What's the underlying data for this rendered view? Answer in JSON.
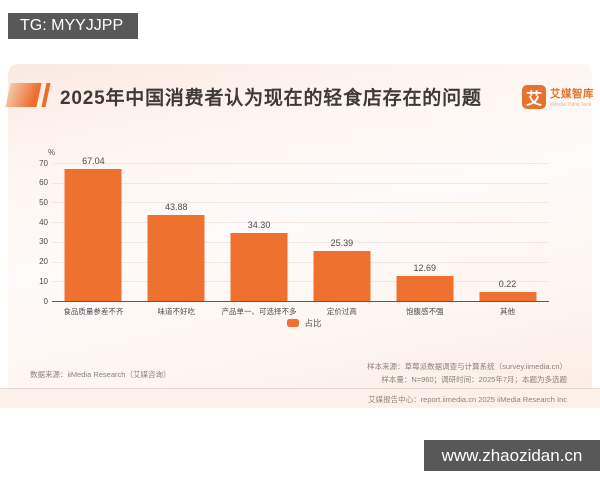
{
  "watermarks": {
    "top": "TG: MYYJJPP",
    "bottom": "www.zhaozidan.cn"
  },
  "header": {
    "title": "2025年中国消费者认为现在的轻食店存在的问题",
    "logo": {
      "glyph": "艾",
      "name": "艾媒智库",
      "subtitle": "iiMedia Think Tank"
    }
  },
  "chart_data": {
    "type": "bar",
    "categories": [
      "食品质量参差不齐",
      "味道不好吃",
      "产品单一、可选择不多",
      "定价过高",
      "饱腹感不强",
      "其他"
    ],
    "values": [
      67.04,
      43.88,
      34.3,
      25.39,
      12.69,
      0.22
    ],
    "value_labels": [
      "67.04",
      "43.88",
      "34.30",
      "25.39",
      "12.69",
      "0.22"
    ],
    "title": "2025年中国消费者认为现在的轻食店存在的问题",
    "xlabel": "",
    "ylabel": "%",
    "ylim": [
      0,
      70
    ],
    "yticks": [
      0,
      10,
      20,
      30,
      40,
      50,
      60,
      70
    ],
    "legend": [
      "占比"
    ],
    "legend_position": "bottom",
    "grid": true,
    "bar_color": "#ee7130"
  },
  "footer": {
    "data_source": "数据来源：iiMedia Research（艾媒咨询）",
    "sample_source": "样本来源：草莓派数据调查与计算系统（survey.iimedia.cn）",
    "sample_info": "样本量：N=960；调研时间：2025年7月；本题为多选题",
    "report_center": "艾媒报告中心：report.iimedia.cn  2025 iiMedia Research Inc"
  }
}
